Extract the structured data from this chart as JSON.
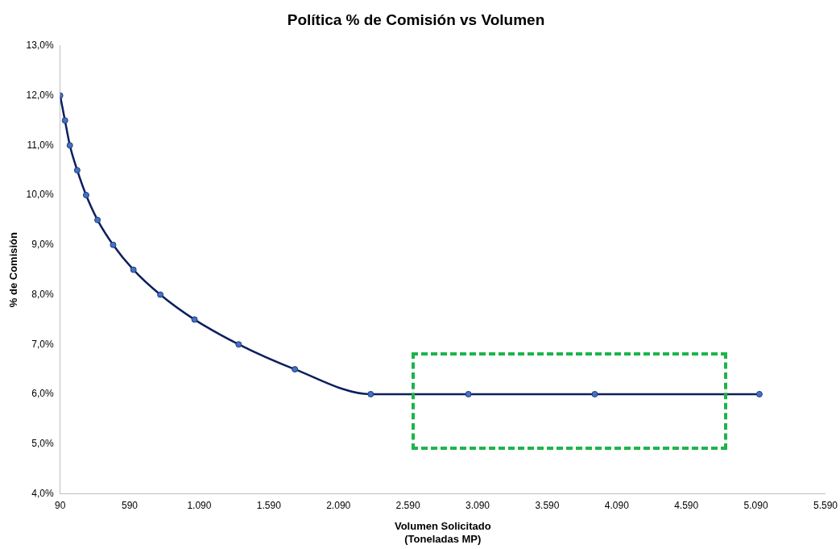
{
  "chart_data": {
    "type": "line",
    "title": "Política % de Comisión vs Volumen",
    "xlabel": "Volumen Solicitado\n(Toneladas MP)",
    "ylabel": "% de Comisión",
    "x": [
      90,
      125,
      160,
      213,
      277,
      359,
      471,
      617,
      810,
      1056,
      1373,
      1777,
      2322,
      3024,
      3932,
      5115
    ],
    "series": [
      {
        "color": "#0b1f5e",
        "values": [
          12.0,
          11.5,
          11.0,
          10.5,
          10.0,
          9.5,
          9.0,
          8.5,
          8.0,
          7.5,
          7.0,
          6.5,
          6.0,
          6.0,
          6.0,
          6.0
        ]
      }
    ],
    "xlim": [
      90,
      5590
    ],
    "xticks": [
      {
        "value": 90,
        "label": "90"
      },
      {
        "value": 590,
        "label": "590"
      },
      {
        "value": 1090,
        "label": "1.090"
      },
      {
        "value": 1590,
        "label": "1.590"
      },
      {
        "value": 2090,
        "label": "2.090"
      },
      {
        "value": 2590,
        "label": "2.590"
      },
      {
        "value": 3090,
        "label": "3.090"
      },
      {
        "value": 3590,
        "label": "3.590"
      },
      {
        "value": 4090,
        "label": "4.090"
      },
      {
        "value": 4590,
        "label": "4.590"
      },
      {
        "value": 5090,
        "label": "5.090"
      },
      {
        "value": 5590,
        "label": "5.590"
      }
    ],
    "ylim": [
      4,
      13
    ],
    "yticks": [
      {
        "value": 4,
        "label": "4,0%"
      },
      {
        "value": 5,
        "label": "5,0%"
      },
      {
        "value": 6,
        "label": "6,0%"
      },
      {
        "value": 7,
        "label": "7,0%"
      },
      {
        "value": 8,
        "label": "8,0%"
      },
      {
        "value": 9,
        "label": "9,0%"
      },
      {
        "value": 10,
        "label": "10,0%"
      },
      {
        "value": 11,
        "label": "11,0%"
      },
      {
        "value": 12,
        "label": "12,0%"
      },
      {
        "value": 13,
        "label": "13,0%"
      }
    ],
    "grid": false,
    "legend": false,
    "marker": "circle",
    "line_style": "solid"
  }
}
